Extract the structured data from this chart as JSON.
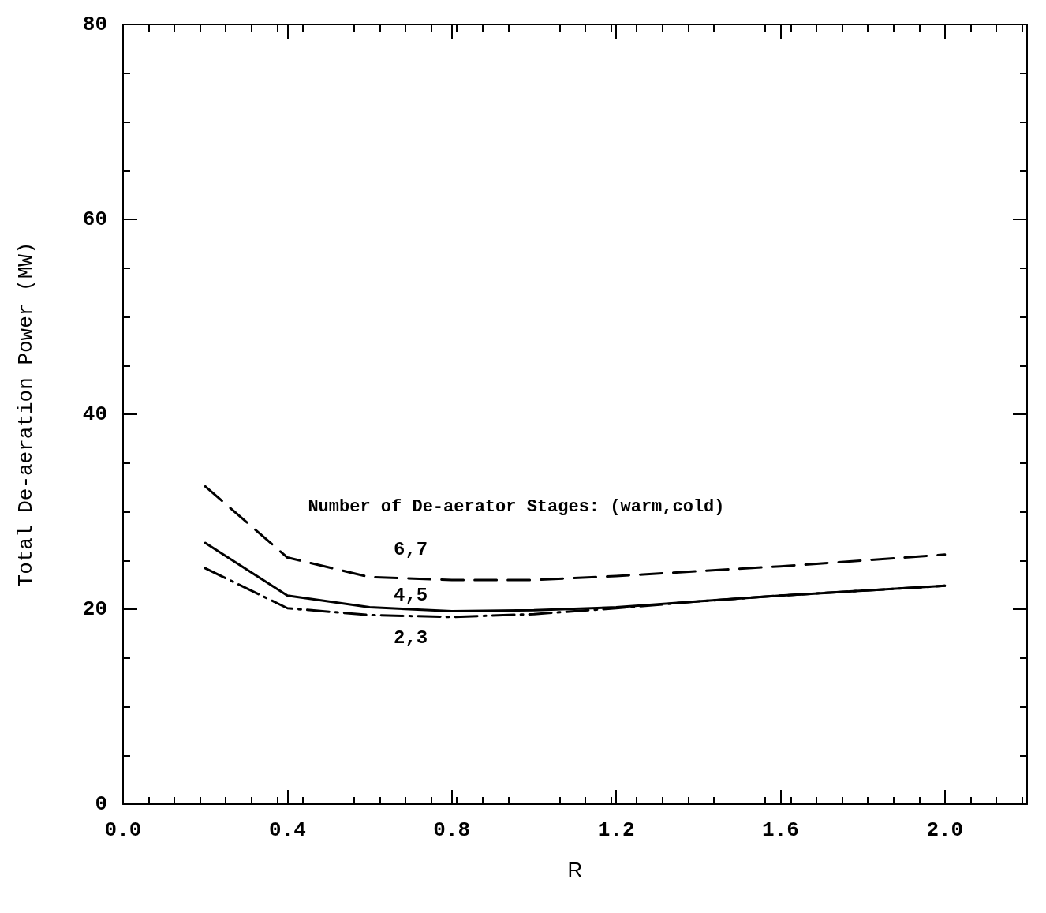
{
  "chart_data": {
    "type": "line",
    "xlabel": "R",
    "ylabel": "Total De-aeration Power (MW)",
    "legend_title": "Number of De-aerator Stages: (warm,cold)",
    "x": [
      0.2,
      0.4,
      0.6,
      0.8,
      1.0,
      1.2,
      1.4,
      1.6,
      1.8,
      2.0
    ],
    "series": [
      {
        "name": "6,7",
        "color": "#000000",
        "line_style": "dashed",
        "values": [
          32.6,
          25.3,
          23.3,
          23.0,
          23.0,
          23.4,
          23.9,
          24.4,
          25.0,
          25.6
        ]
      },
      {
        "name": "4,5",
        "color": "#000000",
        "line_style": "solid",
        "values": [
          26.8,
          21.4,
          20.2,
          19.8,
          19.9,
          20.2,
          20.8,
          21.4,
          21.9,
          22.4
        ]
      },
      {
        "name": "2,3",
        "color": "#000000",
        "line_style": "dashdot",
        "values": [
          24.2,
          20.1,
          19.4,
          19.2,
          19.5,
          20.1,
          20.8,
          21.4,
          21.9,
          22.4
        ]
      }
    ],
    "xlim": [
      0,
      2.2
    ],
    "xticks": [
      {
        "value": 0,
        "label": "0.0"
      },
      0.4,
      0.8,
      1.2,
      1.6,
      {
        "value": 2.0,
        "label": "2.0"
      }
    ],
    "ylim": [
      0,
      80
    ],
    "yticks": [
      0,
      20,
      40,
      60,
      80
    ],
    "grid": false,
    "legend": false,
    "marker": "none"
  }
}
